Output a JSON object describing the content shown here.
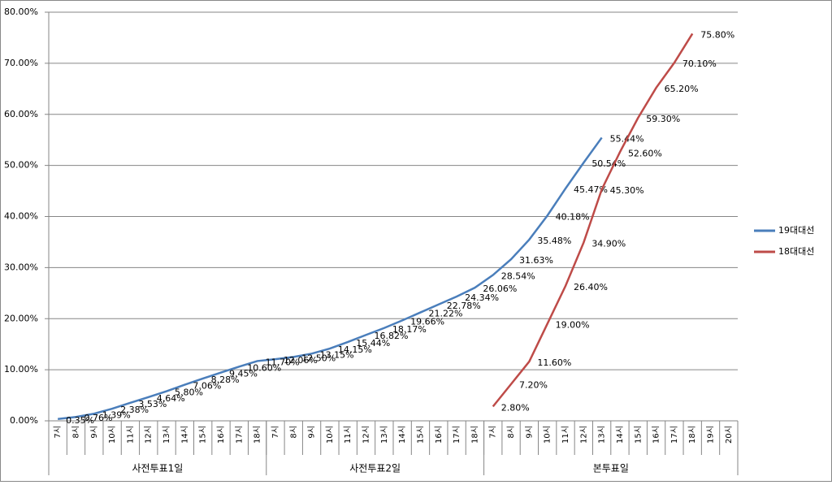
{
  "chart_data": {
    "type": "line",
    "categories": [
      "7시",
      "8시",
      "9시",
      "10시",
      "11시",
      "12시",
      "13시",
      "14시",
      "15시",
      "16시",
      "17시",
      "18시",
      "7시",
      "8시",
      "9시",
      "10시",
      "11시",
      "12시",
      "13시",
      "14시",
      "15시",
      "16시",
      "17시",
      "18시",
      "7시",
      "8시",
      "9시",
      "10시",
      "11시",
      "12시",
      "13시",
      "14시",
      "15시",
      "16시",
      "17시",
      "18시",
      "19시",
      "20시"
    ],
    "category_groups": [
      {
        "label": "사전투표1일",
        "size": 12
      },
      {
        "label": "사전투표2일",
        "size": 12
      },
      {
        "label": "본투표일",
        "size": 14
      }
    ],
    "series": [
      {
        "name": "19대대선",
        "color": "#4a7ebb",
        "values": [
          0.35,
          0.76,
          1.39,
          2.38,
          3.53,
          4.64,
          5.8,
          7.06,
          8.28,
          9.45,
          10.6,
          11.7,
          12.06,
          12.5,
          13.15,
          14.15,
          15.44,
          16.82,
          18.17,
          19.66,
          21.22,
          22.78,
          24.34,
          26.06,
          28.54,
          31.63,
          35.48,
          40.18,
          45.47,
          50.54,
          55.44,
          null,
          null,
          null,
          null,
          null,
          null,
          null
        ],
        "value_labels": [
          "0.35%",
          "0.76%",
          "1.39%",
          "2.38%",
          "3.53%",
          "4.64%",
          "5.80%",
          "7.06%",
          "8.28%",
          "9.45%",
          "10.60%",
          "11.70%",
          "12.06%",
          "12.50%",
          "13.15%",
          "14.15%",
          "15.44%",
          "16.82%",
          "18.17%",
          "19.66%",
          "21.22%",
          "22.78%",
          "24.34%",
          "26.06%",
          "28.54%",
          "31.63%",
          "35.48%",
          "40.18%",
          "45.47%",
          "50.54%",
          "55.44%",
          null,
          null,
          null,
          null,
          null,
          null,
          null
        ]
      },
      {
        "name": "18대대선",
        "color": "#be4b48",
        "values": [
          null,
          null,
          null,
          null,
          null,
          null,
          null,
          null,
          null,
          null,
          null,
          null,
          null,
          null,
          null,
          null,
          null,
          null,
          null,
          null,
          null,
          null,
          null,
          null,
          2.8,
          7.2,
          11.6,
          19.0,
          26.4,
          34.9,
          45.3,
          52.6,
          59.3,
          65.2,
          70.1,
          75.8,
          null,
          null
        ],
        "value_labels": [
          null,
          null,
          null,
          null,
          null,
          null,
          null,
          null,
          null,
          null,
          null,
          null,
          null,
          null,
          null,
          null,
          null,
          null,
          null,
          null,
          null,
          null,
          null,
          null,
          "2.80%",
          "7.20%",
          "11.60%",
          "19.00%",
          "26.40%",
          "34.90%",
          "45.30%",
          "52.60%",
          "59.30%",
          "65.20%",
          "70.10%",
          "75.80%",
          null,
          null
        ]
      }
    ],
    "ylim": [
      0,
      80
    ],
    "yticks": [
      {
        "value": 0,
        "label": "0.00%"
      },
      {
        "value": 10,
        "label": "10.00%"
      },
      {
        "value": 20,
        "label": "20.00%"
      },
      {
        "value": 30,
        "label": "30.00%"
      },
      {
        "value": 40,
        "label": "40.00%"
      },
      {
        "value": 50,
        "label": "50.00%"
      },
      {
        "value": 60,
        "label": "60.00%"
      },
      {
        "value": 70,
        "label": "70.00%"
      },
      {
        "value": 80,
        "label": "80.00%"
      }
    ],
    "grid": true,
    "legend": "right"
  }
}
